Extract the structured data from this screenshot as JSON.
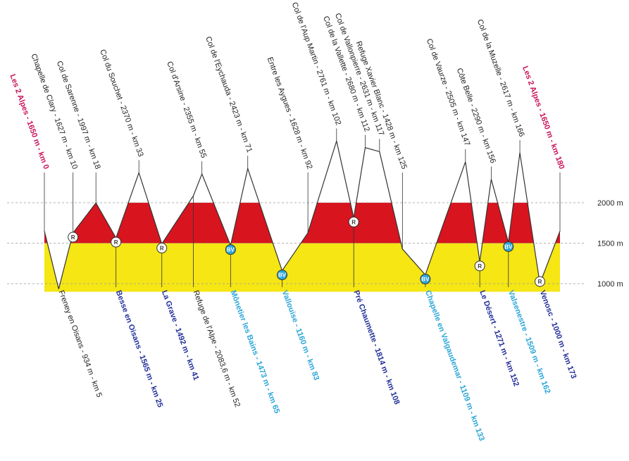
{
  "chart_data": {
    "type": "profile",
    "x": [
      0,
      5,
      10,
      18,
      25,
      33,
      41,
      52,
      55,
      65,
      71,
      83,
      92,
      102,
      108,
      112,
      117,
      125,
      133,
      147,
      152,
      156,
      162,
      166,
      173,
      180
    ],
    "values": [
      1650,
      934,
      1627,
      1997,
      1565,
      2370,
      1492,
      2083.6,
      2355,
      1473,
      2423,
      1160,
      1628,
      2761,
      1814,
      2680,
      2631,
      1428,
      1109,
      2505,
      1271,
      2290,
      1509,
      2617,
      1000,
      1650
    ],
    "labels": [
      "Les 2 Alpes - 1650 m - km 0",
      "Freney en Oisans - 934 m - km 5",
      "Chapelle de Clary - 1627 m - km 10",
      "Col de Sarenne - 1997 m - km 18",
      "Besse en Oisans - 1565 m - km 25",
      "Col du Souchet - 2370 m - km 33",
      "La Grave - 1492 m - km 41",
      "Refuge de l'Alpe - 2083,6 m - km 52",
      "Col d'Arsine - 2355 m - km 55",
      "Mônetier les Bains - 1473 m - km 65",
      "Col de l'Eychauda - 2423 m - km 71",
      "Vallouise - 1160 m - km 83",
      "Entre les Aygues - 1628 m - km 92",
      "Col de l'Aup Martin - 2761 m - km 102",
      "Pré Chaumette - 1814 m - km 108",
      "Col de la Vallette - 2680 m - km 112",
      "Col de Vallonpierre - 2631 m - km 117",
      "Refuge Xavier Blanc - 1428 m - km 125",
      "Chapelle en Valgaudemar - 1109 m - km 133",
      "Col de Vaurze - 2505 m - km 147",
      "Le Désert - 1271 m - km 152",
      "Côte Belle - 2290 m - km 156",
      "Valsenestre - 1509 m - km 162",
      "Col de la Muzelle - 2617 m - km 166",
      "Venosc - 1000 m - km 173",
      "Les 2 Alpes - 1650 m - km 180"
    ],
    "placement": [
      "top",
      "bottom",
      "top",
      "top",
      "bottom",
      "top",
      "bottom",
      "bottom",
      "top",
      "bottom",
      "top",
      "bottom",
      "top",
      "top",
      "bottom",
      "top",
      "top",
      "top",
      "bottom",
      "top",
      "bottom",
      "top",
      "bottom",
      "top",
      "bottom",
      "top"
    ],
    "label_colors": [
      "#c8145a",
      "#222222",
      "#222222",
      "#222222",
      "#23309a",
      "#222222",
      "#23309a",
      "#222222",
      "#222222",
      "#2aa6d8",
      "#222222",
      "#2aa6d8",
      "#222222",
      "#222222",
      "#23309a",
      "#222222",
      "#222222",
      "#222222",
      "#2aa6d8",
      "#222222",
      "#23309a",
      "#222222",
      "#2aa6d8",
      "#222222",
      "#23309a",
      "#c8145a"
    ],
    "badges": [
      null,
      null,
      "R",
      null,
      "R",
      null,
      "R",
      null,
      null,
      "BV",
      null,
      "BV",
      null,
      null,
      "R",
      null,
      null,
      null,
      "BV",
      null,
      "R",
      null,
      "BV",
      null,
      "R",
      null
    ],
    "xlim": [
      0,
      180
    ],
    "ylim": [
      900,
      2800
    ],
    "yticks": [
      {
        "value": 1000,
        "label": "1000 m"
      },
      {
        "value": 1500,
        "label": "1500 m"
      },
      {
        "value": 2000,
        "label": "2000 m"
      }
    ],
    "band_colors": [
      "#f5e614",
      "#d8141e",
      "#ffffff"
    ]
  }
}
